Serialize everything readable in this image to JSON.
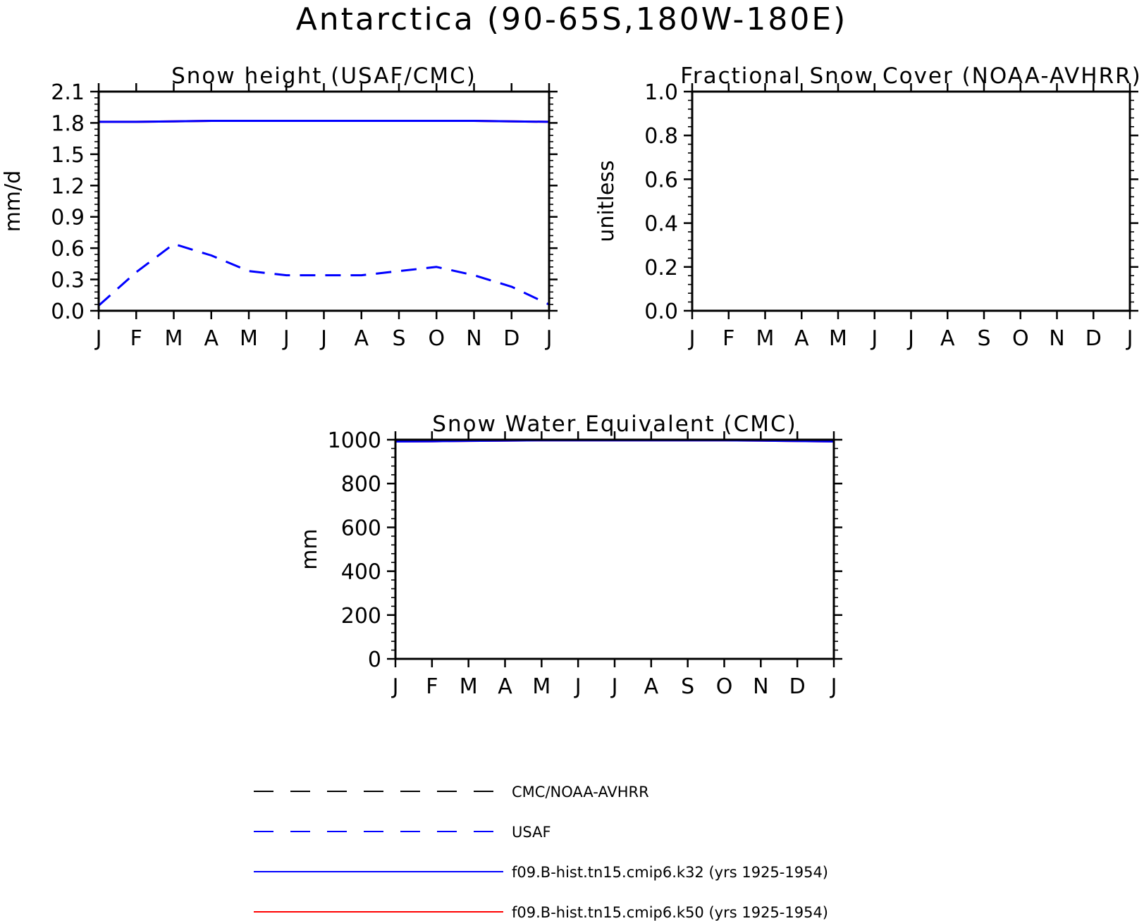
{
  "title": "Antarctica (90-65S,180W-180E)",
  "chart_data": [
    {
      "type": "line",
      "title": "Snow height (USAF/CMC)",
      "ylabel": "mm/d",
      "xlabel": "",
      "x": [
        "J",
        "F",
        "M",
        "A",
        "M",
        "J",
        "J",
        "A",
        "S",
        "O",
        "N",
        "D",
        "J"
      ],
      "ylim": [
        0,
        2.1
      ],
      "yticks": [
        "0.0",
        "0.3",
        "0.6",
        "0.9",
        "1.2",
        "1.5",
        "1.8",
        "2.1"
      ],
      "series": [
        {
          "name": "CMC/NOAA-AVHRR",
          "color": "#000000",
          "dash": true,
          "values": [
            0,
            0,
            0,
            0,
            0,
            0,
            0,
            0,
            0,
            0,
            0,
            0,
            0
          ]
        },
        {
          "name": "USAF",
          "color": "#0000ff",
          "dash": true,
          "values": [
            0.05,
            0.37,
            0.64,
            0.53,
            0.38,
            0.34,
            0.34,
            0.34,
            0.38,
            0.42,
            0.34,
            0.23,
            0.06
          ]
        },
        {
          "name": "f09.B-hist.tn15.cmip6.k32 (yrs 1925-1954)",
          "color": "#0000ff",
          "dash": false,
          "values": [
            1.81,
            1.81,
            1.815,
            1.82,
            1.82,
            1.82,
            1.82,
            1.82,
            1.82,
            1.82,
            1.82,
            1.815,
            1.81
          ]
        },
        {
          "name": "f09.B-hist.tn15.cmip6.k50 (yrs 1925-1954)",
          "color": "#ff0000",
          "dash": false,
          "values": [
            1.81,
            1.81,
            1.815,
            1.82,
            1.82,
            1.82,
            1.82,
            1.82,
            1.82,
            1.82,
            1.82,
            1.815,
            1.81
          ]
        }
      ]
    },
    {
      "type": "line",
      "title": "Fractional Snow Cover (NOAA-AVHRR)",
      "ylabel": "unitless",
      "xlabel": "",
      "x": [
        "J",
        "F",
        "M",
        "A",
        "M",
        "J",
        "J",
        "A",
        "S",
        "O",
        "N",
        "D",
        "J"
      ],
      "ylim": [
        0,
        1.0
      ],
      "yticks": [
        "0.0",
        "0.2",
        "0.4",
        "0.6",
        "0.8",
        "1.0"
      ],
      "series": [
        {
          "name": "CMC/NOAA-AVHRR",
          "color": "#000000",
          "dash": true,
          "values": [
            0,
            0,
            0,
            0,
            0,
            0,
            0,
            0,
            0,
            0,
            0,
            0,
            0
          ]
        },
        {
          "name": "f09.B-hist.tn15.cmip6.k32 (yrs 1925-1954)",
          "color": "#0000ff",
          "dash": false,
          "values": [
            1,
            1,
            1,
            1,
            1,
            1,
            1,
            1,
            1,
            1,
            1,
            1,
            1
          ]
        },
        {
          "name": "f09.B-hist.tn15.cmip6.k50 (yrs 1925-1954)",
          "color": "#ff0000",
          "dash": false,
          "values": [
            1,
            1,
            1,
            1,
            1,
            1,
            1,
            1,
            1,
            1,
            1,
            1,
            1
          ]
        }
      ]
    },
    {
      "type": "line",
      "title": "Snow Water Equivalent (CMC)",
      "ylabel": "mm",
      "xlabel": "",
      "x": [
        "J",
        "F",
        "M",
        "A",
        "M",
        "J",
        "J",
        "A",
        "S",
        "O",
        "N",
        "D",
        "J"
      ],
      "ylim": [
        0,
        1000
      ],
      "yticks": [
        "0",
        "200",
        "400",
        "600",
        "800",
        "1000"
      ],
      "series": [
        {
          "name": "CMC/NOAA-AVHRR",
          "color": "#000000",
          "dash": true,
          "values": [
            0,
            0,
            0,
            0,
            0,
            0,
            0,
            0,
            0,
            0,
            0,
            0,
            0
          ]
        },
        {
          "name": "f09.B-hist.tn15.cmip6.k32 (yrs 1925-1954)",
          "color": "#0000ff",
          "dash": false,
          "values": [
            992,
            993,
            995,
            996,
            997,
            997,
            997,
            997,
            997,
            997,
            996,
            994,
            992
          ]
        },
        {
          "name": "f09.B-hist.tn15.cmip6.k50 (yrs 1925-1954)",
          "color": "#ff0000",
          "dash": false,
          "values": [
            992,
            993,
            995,
            996,
            997,
            997,
            997,
            997,
            997,
            997,
            996,
            994,
            992
          ]
        }
      ]
    }
  ],
  "legend": [
    {
      "label": "CMC/NOAA-AVHRR",
      "color": "#000000",
      "dash": true
    },
    {
      "label": "USAF",
      "color": "#0000ff",
      "dash": true
    },
    {
      "label": "f09.B-hist.tn15.cmip6.k32 (yrs 1925-1954)",
      "color": "#0000ff",
      "dash": false
    },
    {
      "label": "f09.B-hist.tn15.cmip6.k50 (yrs 1925-1954)",
      "color": "#ff0000",
      "dash": false
    }
  ]
}
